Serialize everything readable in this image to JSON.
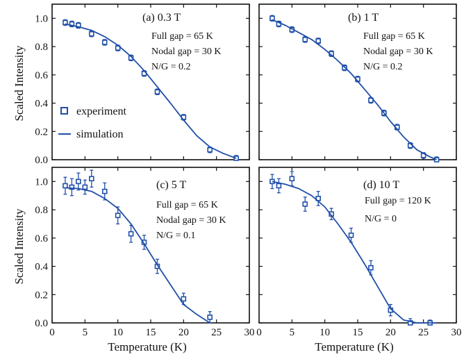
{
  "chart_data": [
    {
      "type": "scatter",
      "panel": "a",
      "title": "(a) 0.3 T",
      "annotations": [
        "Full gap = 65 K",
        "Nodal gap = 30 K",
        "N/G = 0.2"
      ],
      "xlim": [
        0,
        30
      ],
      "ylim": [
        0,
        1.1
      ],
      "yticks": [
        0.0,
        0.2,
        0.4,
        0.6,
        0.8,
        1.0
      ],
      "xticks": [],
      "ylabel": "Scaled Intensity",
      "xlabel": "",
      "legend": {
        "position": "left-middle",
        "entries": [
          "experiment",
          "simulation"
        ]
      },
      "series": [
        {
          "name": "experiment",
          "kind": "markers",
          "x": [
            2,
            3,
            4,
            6,
            8,
            10,
            12,
            14,
            16,
            20,
            24,
            28
          ],
          "y": [
            0.97,
            0.96,
            0.95,
            0.89,
            0.83,
            0.79,
            0.72,
            0.61,
            0.48,
            0.3,
            0.07,
            0.01
          ],
          "err": [
            0.02,
            0.02,
            0.02,
            0.02,
            0.02,
            0.02,
            0.02,
            0.02,
            0.02,
            0.02,
            0.02,
            0.02
          ]
        },
        {
          "name": "simulation",
          "kind": "line",
          "x": [
            2,
            4,
            6,
            8,
            10,
            12,
            14,
            16,
            18,
            20,
            22,
            24,
            26,
            28
          ],
          "y": [
            0.96,
            0.94,
            0.915,
            0.87,
            0.81,
            0.73,
            0.63,
            0.515,
            0.4,
            0.28,
            0.17,
            0.09,
            0.045,
            0.01
          ]
        }
      ]
    },
    {
      "type": "scatter",
      "panel": "b",
      "title": "(b) 1 T",
      "annotations": [
        "Full gap = 65 K",
        "Nodal gap = 30 K",
        "N/G = 0.2"
      ],
      "xlim": [
        0,
        30
      ],
      "ylim": [
        0,
        1.1
      ],
      "yticks": [],
      "xticks": [],
      "ylabel": "",
      "xlabel": "",
      "series": [
        {
          "name": "experiment",
          "kind": "markers",
          "x": [
            2,
            3,
            5,
            7,
            9,
            11,
            13,
            15,
            17,
            19,
            21,
            23,
            25,
            27
          ],
          "y": [
            1.0,
            0.96,
            0.92,
            0.85,
            0.84,
            0.75,
            0.65,
            0.57,
            0.42,
            0.33,
            0.23,
            0.1,
            0.03,
            0.0
          ],
          "err": [
            0.02,
            0.02,
            0.02,
            0.02,
            0.02,
            0.02,
            0.02,
            0.02,
            0.02,
            0.02,
            0.02,
            0.02,
            0.02,
            0.02
          ]
        },
        {
          "name": "simulation",
          "kind": "line",
          "x": [
            2,
            4,
            6,
            8,
            10,
            12,
            14,
            16,
            18,
            20,
            22,
            24,
            26,
            27
          ],
          "y": [
            0.99,
            0.95,
            0.9,
            0.85,
            0.78,
            0.7,
            0.61,
            0.5,
            0.39,
            0.27,
            0.16,
            0.07,
            0.02,
            0.0
          ]
        }
      ]
    },
    {
      "type": "scatter",
      "panel": "c",
      "title": "(c) 5 T",
      "annotations": [
        "Full gap = 65 K",
        "Nodal gap = 30 K",
        "N/G = 0.1"
      ],
      "xlim": [
        0,
        30
      ],
      "ylim": [
        0,
        1.1
      ],
      "yticks": [
        0.0,
        0.2,
        0.4,
        0.6,
        0.8,
        1.0
      ],
      "xticks": [
        0,
        5,
        10,
        15,
        20,
        25,
        30
      ],
      "ylabel": "Scaled Intensity",
      "xlabel": "Temperature (K)",
      "series": [
        {
          "name": "experiment",
          "kind": "markers",
          "x": [
            2,
            3,
            4,
            5,
            6,
            8,
            10,
            12,
            14,
            16,
            20,
            24
          ],
          "y": [
            0.97,
            0.96,
            1.0,
            0.96,
            1.02,
            0.93,
            0.76,
            0.63,
            0.57,
            0.4,
            0.17,
            0.04
          ],
          "err": [
            0.06,
            0.06,
            0.06,
            0.05,
            0.06,
            0.06,
            0.06,
            0.06,
            0.05,
            0.05,
            0.04,
            0.04
          ]
        },
        {
          "name": "simulation",
          "kind": "line",
          "x": [
            2,
            4,
            6,
            8,
            10,
            12,
            14,
            16,
            18,
            20,
            22,
            24
          ],
          "y": [
            0.955,
            0.95,
            0.93,
            0.88,
            0.81,
            0.7,
            0.56,
            0.41,
            0.27,
            0.13,
            0.06,
            0.0
          ]
        }
      ]
    },
    {
      "type": "scatter",
      "panel": "d",
      "title": "(d) 10 T",
      "annotations": [
        "Full gap = 120 K",
        "N/G = 0"
      ],
      "xlim": [
        0,
        30
      ],
      "ylim": [
        0,
        1.1
      ],
      "yticks": [],
      "xticks": [
        0,
        5,
        10,
        15,
        20,
        25,
        30
      ],
      "ylabel": "",
      "xlabel": "Temperature (K)",
      "series": [
        {
          "name": "experiment",
          "kind": "markers",
          "x": [
            2,
            3,
            5,
            7,
            9,
            11,
            14,
            17,
            20,
            23,
            26
          ],
          "y": [
            1.0,
            0.97,
            1.02,
            0.84,
            0.88,
            0.77,
            0.62,
            0.39,
            0.09,
            0.0,
            0.0
          ],
          "err": [
            0.05,
            0.05,
            0.05,
            0.05,
            0.05,
            0.04,
            0.05,
            0.05,
            0.04,
            0.03,
            0.02
          ]
        },
        {
          "name": "simulation",
          "kind": "line",
          "x": [
            2,
            4,
            6,
            8,
            10,
            12,
            14,
            16,
            18,
            20,
            22,
            24,
            26,
            27
          ],
          "y": [
            1.0,
            0.98,
            0.95,
            0.9,
            0.82,
            0.7,
            0.57,
            0.42,
            0.26,
            0.1,
            0.02,
            0.0,
            0.0,
            0.0
          ]
        }
      ]
    }
  ],
  "colors": {
    "series": "#1f4fa8",
    "axis": "#111111"
  }
}
